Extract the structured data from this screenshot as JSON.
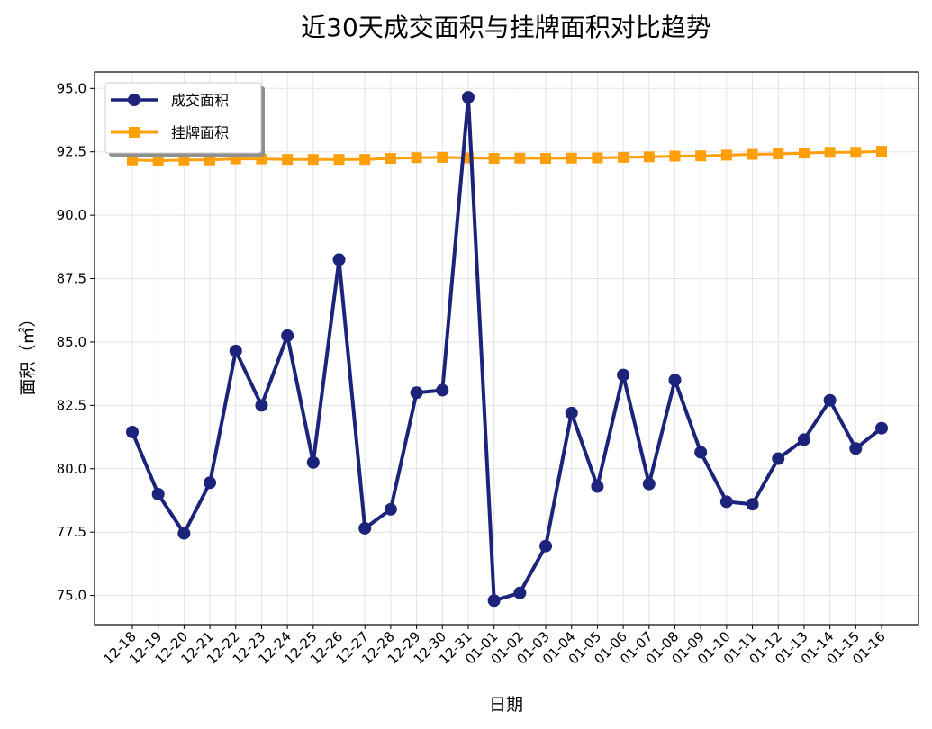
{
  "chart_data": {
    "type": "line",
    "title": "近30天成交面积与挂牌面积对比趋势",
    "xlabel": "日期",
    "ylabel": "面积（㎡）",
    "categories": [
      "12-18",
      "12-19",
      "12-20",
      "12-21",
      "12-22",
      "12-23",
      "12-24",
      "12-25",
      "12-26",
      "12-27",
      "12-28",
      "12-29",
      "12-30",
      "12-31",
      "01-01",
      "01-02",
      "01-03",
      "01-04",
      "01-05",
      "01-06",
      "01-07",
      "01-08",
      "01-09",
      "01-10",
      "01-11",
      "01-12",
      "01-13",
      "01-14",
      "01-15",
      "01-16"
    ],
    "series": [
      {
        "name": "成交面积",
        "color": "#1c237a",
        "marker": "circle",
        "values": [
          81.45,
          79.0,
          77.45,
          79.45,
          84.65,
          82.5,
          85.25,
          80.25,
          88.25,
          77.65,
          78.4,
          83.0,
          83.1,
          94.65,
          74.8,
          75.1,
          76.95,
          82.2,
          79.3,
          83.7,
          79.4,
          83.5,
          80.65,
          78.7,
          78.6,
          80.4,
          81.15,
          82.7,
          80.8,
          81.6
        ]
      },
      {
        "name": "挂牌面积",
        "color": "#ff9f0a",
        "marker": "square",
        "values": [
          92.18,
          92.15,
          92.18,
          92.18,
          92.22,
          92.22,
          92.2,
          92.2,
          92.2,
          92.2,
          92.24,
          92.27,
          92.28,
          92.26,
          92.24,
          92.25,
          92.24,
          92.25,
          92.26,
          92.28,
          92.3,
          92.33,
          92.34,
          92.37,
          92.4,
          92.42,
          92.45,
          92.48,
          92.48,
          92.52
        ]
      }
    ],
    "ylim": [
      73.85,
      95.65
    ],
    "yticks": [
      "75.0",
      "77.5",
      "80.0",
      "82.5",
      "85.0",
      "87.5",
      "90.0",
      "92.5",
      "95.0"
    ],
    "grid": true,
    "legend_position": "upper-left"
  }
}
